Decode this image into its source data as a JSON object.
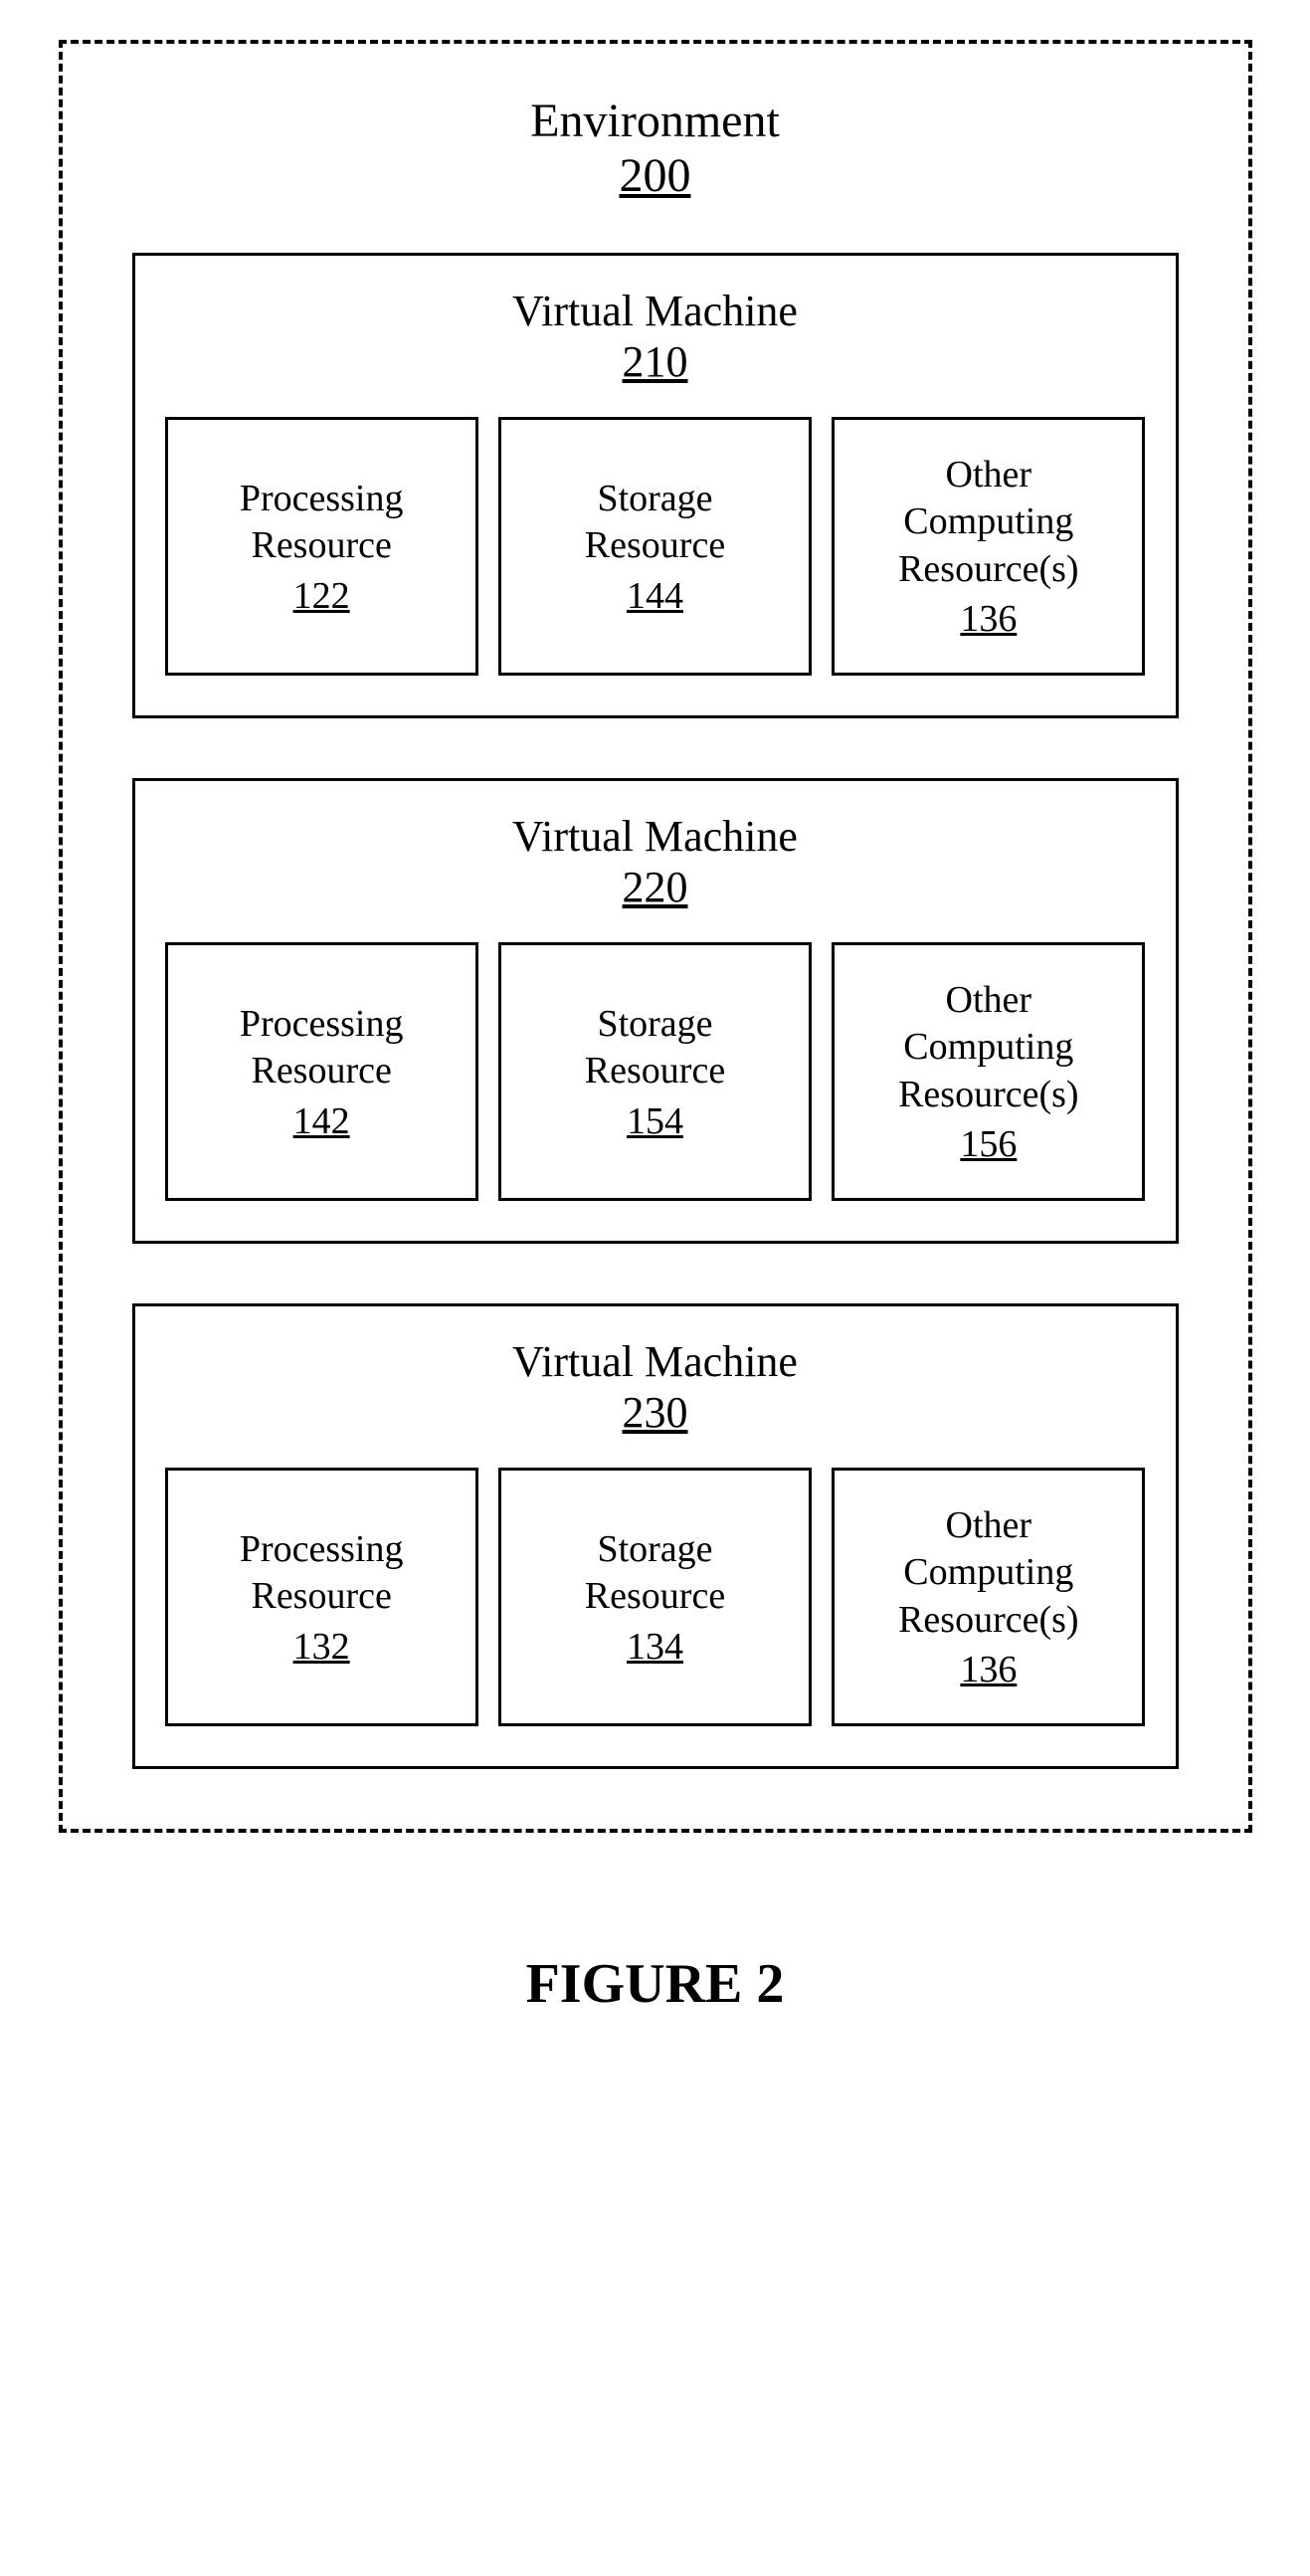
{
  "diagram": {
    "type": "block-diagram",
    "colors": {
      "background": "#ffffff",
      "border": "#000000",
      "text": "#000000"
    },
    "font_family": "Times New Roman",
    "environment": {
      "title": "Environment",
      "number": "200",
      "border_style": "dashed",
      "vms": [
        {
          "title": "Virtual Machine",
          "number": "210",
          "resources": [
            {
              "line1": "Processing",
              "line2": "Resource",
              "number": "122"
            },
            {
              "line1": "Storage",
              "line2": "Resource",
              "number": "144"
            },
            {
              "line1": "Other",
              "line2": "Computing",
              "line3": "Resource(s)",
              "number": "136"
            }
          ]
        },
        {
          "title": "Virtual Machine",
          "number": "220",
          "resources": [
            {
              "line1": "Processing",
              "line2": "Resource",
              "number": "142"
            },
            {
              "line1": "Storage",
              "line2": "Resource",
              "number": "154"
            },
            {
              "line1": "Other",
              "line2": "Computing",
              "line3": "Resource(s)",
              "number": "156"
            }
          ]
        },
        {
          "title": "Virtual Machine",
          "number": "230",
          "resources": [
            {
              "line1": "Processing",
              "line2": "Resource",
              "number": "132"
            },
            {
              "line1": "Storage",
              "line2": "Resource",
              "number": "134"
            },
            {
              "line1": "Other",
              "line2": "Computing",
              "line3": "Resource(s)",
              "number": "136"
            }
          ]
        }
      ]
    },
    "caption": "FIGURE 2"
  }
}
